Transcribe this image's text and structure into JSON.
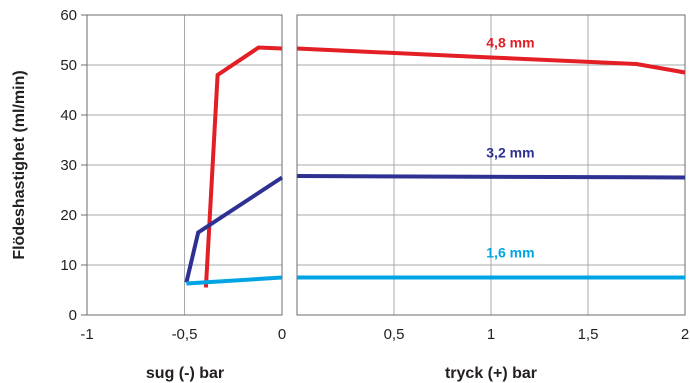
{
  "chart_data": {
    "type": "line",
    "ylabel": "Flödeshastighet (ml/min)",
    "ylim": [
      0,
      60
    ],
    "yticks": [
      "0",
      "10",
      "20",
      "30",
      "40",
      "50",
      "60"
    ],
    "grid": true,
    "panels": [
      {
        "xlabel": "sug (-) bar",
        "xlim": [
          -1,
          0
        ],
        "xticks": [
          "-1",
          "-0,5",
          "0"
        ]
      },
      {
        "xlabel": "tryck (+) bar",
        "xlim": [
          0,
          2
        ],
        "xticks": [
          "0,5",
          "1",
          "1,5",
          "2"
        ]
      }
    ],
    "series": [
      {
        "name": "4,8 mm",
        "color": "#e31e24",
        "suction": [
          [
            -0.39,
            5.5
          ],
          [
            -0.33,
            48
          ],
          [
            -0.12,
            53.5
          ],
          [
            0,
            53.3
          ]
        ],
        "pressure": [
          [
            0,
            53.3
          ],
          [
            1.0,
            51.5
          ],
          [
            1.75,
            50.2
          ],
          [
            2.0,
            48.5
          ]
        ],
        "label_at": [
          1.1,
          53.5
        ]
      },
      {
        "name": "3,2 mm",
        "color": "#2e3192",
        "suction": [
          [
            -0.49,
            6.5
          ],
          [
            -0.43,
            16.5
          ],
          [
            0,
            27.5
          ]
        ],
        "pressure": [
          [
            0,
            27.8
          ],
          [
            2.0,
            27.5
          ]
        ],
        "label_at": [
          1.1,
          31.5
        ]
      },
      {
        "name": "1,6 mm",
        "color": "#00a4e4",
        "suction": [
          [
            -0.49,
            6.3
          ],
          [
            0,
            7.5
          ]
        ],
        "pressure": [
          [
            0,
            7.5
          ],
          [
            2.0,
            7.5
          ]
        ],
        "label_at": [
          1.1,
          11.5
        ]
      }
    ]
  }
}
